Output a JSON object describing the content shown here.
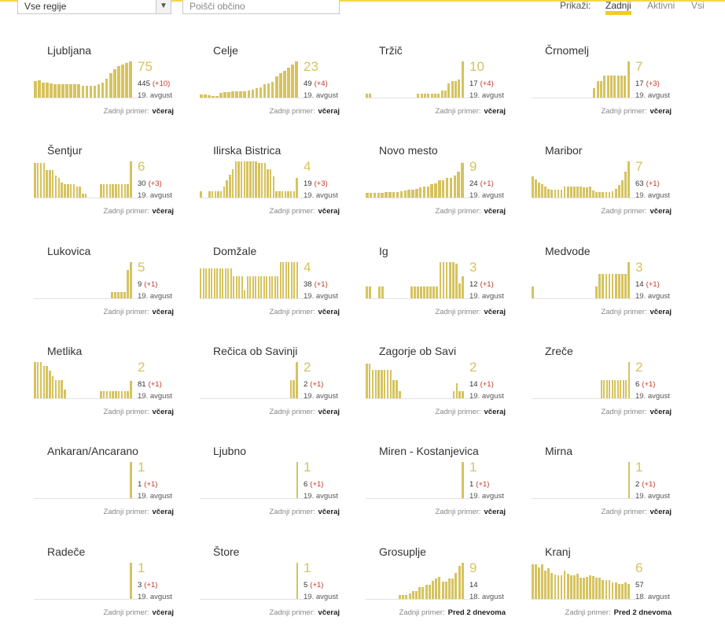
{
  "toolbar": {
    "region_select": "Vse regije",
    "search_placeholder": "Poišči občino",
    "show_label": "Prikaži:",
    "tabs": {
      "last": "Zadnji",
      "active": "Aktivni",
      "all": "Vsi"
    }
  },
  "colors": {
    "bar": "#d6c35e",
    "delta": "#c0392b",
    "accent": "#f2cc22"
  },
  "cards": [
    {
      "name": "Ljubljana",
      "big": "75",
      "total": "445",
      "delta": "(+10)",
      "date": "19. avgust",
      "last_label": "Zadnji primer:",
      "last_value": "včeraj",
      "chart": [
        0.45,
        0.48,
        0.42,
        0.42,
        0.4,
        0.38,
        0.38,
        0.36,
        0.36,
        0.36,
        0.36,
        0.36,
        0.33,
        0.33,
        0.33,
        0.33,
        0.38,
        0.42,
        0.52,
        0.68,
        0.78,
        0.86,
        0.92,
        0.96,
        1.0
      ]
    },
    {
      "name": "Celje",
      "big": "23",
      "total": "49",
      "delta": "(+4)",
      "date": "19. avgust",
      "last_label": "Zadnji primer:",
      "last_value": "včeraj",
      "chart": [
        0.08,
        0.08,
        0.06,
        0.04,
        0.04,
        0.12,
        0.16,
        0.16,
        0.18,
        0.18,
        0.18,
        0.18,
        0.2,
        0.22,
        0.26,
        0.28,
        0.36,
        0.4,
        0.44,
        0.58,
        0.68,
        0.74,
        0.82,
        0.92,
        1.0
      ]
    },
    {
      "name": "Tržič",
      "big": "10",
      "total": "17",
      "delta": "(+4)",
      "date": "19. avgust",
      "last_label": "Zadnji primer:",
      "last_value": "včeraj",
      "chart": [
        0.1,
        0.1,
        0,
        0,
        0,
        0,
        0,
        0,
        0,
        0,
        0,
        0,
        0,
        0,
        0,
        0.1,
        0.1,
        0.1,
        0.1,
        0.1,
        0.1,
        0.1,
        0.2,
        0.2,
        0.4,
        0.45,
        0.45,
        0.5,
        1.0
      ]
    },
    {
      "name": "Črnomelj",
      "big": "7",
      "total": "17",
      "delta": "(+3)",
      "date": "19. avgust",
      "last_label": "Zadnji primer:",
      "last_value": "včeraj",
      "chart": [
        0,
        0,
        0,
        0,
        0,
        0,
        0,
        0,
        0,
        0,
        0,
        0,
        0,
        0,
        0,
        0,
        0,
        0,
        0.25,
        0.45,
        0.45,
        0.6,
        0.6,
        0.6,
        0.6,
        0.6,
        0.6,
        0.6,
        1.0
      ]
    },
    {
      "name": "Šentjur",
      "big": "6",
      "total": "30",
      "delta": "(+3)",
      "date": "19. avgust",
      "last_label": "Zadnji primer:",
      "last_value": "včeraj",
      "chart": [
        0.95,
        0.95,
        0.95,
        0.95,
        0.75,
        0.75,
        0.75,
        0.6,
        0.55,
        0.42,
        0.38,
        0.38,
        0.38,
        0.38,
        0.3,
        0.3,
        0.1,
        0.1,
        0,
        0,
        0,
        0,
        0.38,
        0.38,
        0.38,
        0.38,
        0.38,
        0.38,
        0.38,
        0.38,
        0.38,
        0.38,
        1.0
      ]
    },
    {
      "name": "Ilirska Bistrica",
      "big": "4",
      "total": "19",
      "delta": "(+3)",
      "date": "19. avgust",
      "last_label": "Zadnji primer:",
      "last_value": "včeraj",
      "chart": [
        0.18,
        0,
        0,
        0.18,
        0.18,
        0.18,
        0.18,
        0.18,
        0.3,
        0.48,
        0.64,
        0.78,
        1.0,
        1.0,
        1.0,
        1.0,
        1.0,
        1.0,
        1.0,
        1.0,
        0.95,
        0.95,
        0.95,
        0.78,
        0.78,
        0.58,
        0.18,
        0.18,
        0.18,
        0.18,
        0.18,
        0.18,
        0.18,
        0.55
      ]
    },
    {
      "name": "Novo mesto",
      "big": "9",
      "total": "24",
      "delta": "(+1)",
      "date": "19. avgust",
      "last_label": "Zadnji primer:",
      "last_value": "včeraj",
      "chart": [
        0.12,
        0.12,
        0.12,
        0.12,
        0.12,
        0.16,
        0.16,
        0.16,
        0.16,
        0.18,
        0.2,
        0.22,
        0.22,
        0.24,
        0.28,
        0.3,
        0.3,
        0.36,
        0.4,
        0.48,
        0.48,
        0.55,
        0.55,
        0.6,
        0.72,
        0.95
      ]
    },
    {
      "name": "Maribor",
      "big": "7",
      "total": "63",
      "delta": "(+1)",
      "date": "19. avgust",
      "last_label": "Zadnji primer:",
      "last_value": "včeraj",
      "chart": [
        0.58,
        0.5,
        0.42,
        0.36,
        0.3,
        0.24,
        0.22,
        0.22,
        0.22,
        0.22,
        0.3,
        0.3,
        0.3,
        0.3,
        0.3,
        0.3,
        0.28,
        0.28,
        0.3,
        0.2,
        0.16,
        0.16,
        0.16,
        0.16,
        0.16,
        0.18,
        0.24,
        0.34,
        0.48,
        0.72,
        1.0
      ]
    },
    {
      "name": "Lukovica",
      "big": "5",
      "total": "9",
      "delta": "(+1)",
      "date": "19. avgust",
      "last_label": "Zadnji primer:",
      "last_value": "včeraj",
      "chart": [
        0,
        0,
        0,
        0,
        0,
        0,
        0,
        0,
        0,
        0,
        0,
        0,
        0,
        0,
        0,
        0,
        0,
        0,
        0,
        0,
        0,
        0,
        0,
        0,
        0,
        0.18,
        0.18,
        0.18,
        0.18,
        0.18,
        0.78,
        1.0
      ]
    },
    {
      "name": "Domžale",
      "big": "4",
      "total": "38",
      "delta": "(+1)",
      "date": "19. avgust",
      "last_label": "Zadnji primer:",
      "last_value": "včeraj",
      "chart": [
        0.82,
        0.82,
        0.82,
        0.82,
        0.82,
        0.82,
        0.82,
        0.82,
        0.82,
        0.82,
        0.82,
        0.82,
        0.6,
        0.6,
        0.6,
        0.6,
        0.22,
        0.6,
        0.6,
        0.6,
        0.6,
        0.6,
        0.6,
        0.6,
        0.6,
        0.6,
        0.6,
        0.6,
        0.6,
        1.0,
        1.0,
        1.0,
        1.0,
        1.0,
        1.0,
        1.0
      ]
    },
    {
      "name": "Ig",
      "big": "3",
      "total": "12",
      "delta": "(+1)",
      "date": "19. avgust",
      "last_label": "Zadnji primer:",
      "last_value": "včeraj",
      "chart": [
        0.32,
        0.32,
        0,
        0,
        0.32,
        0.32,
        0,
        0,
        0,
        0,
        0,
        0,
        0,
        0,
        0.32,
        0.32,
        0.32,
        0.32,
        0.32,
        0.32,
        0.32,
        0.32,
        0.32,
        1.0,
        1.0,
        1.0,
        1.0,
        1.0,
        0.95,
        0.42,
        0.6
      ]
    },
    {
      "name": "Medvode",
      "big": "3",
      "total": "14",
      "delta": "(+1)",
      "date": "19. avgust",
      "last_label": "Zadnji primer:",
      "last_value": "včeraj",
      "chart": [
        0.32,
        0,
        0,
        0,
        0,
        0,
        0,
        0,
        0,
        0,
        0,
        0,
        0,
        0,
        0,
        0,
        0,
        0,
        0,
        0,
        0.32,
        0.68,
        0.68,
        0.68,
        0.68,
        0.68,
        0.68,
        0.68,
        0.68,
        0.68,
        1.0
      ]
    },
    {
      "name": "Metlika",
      "big": "2",
      "total": "81",
      "delta": "(+1)",
      "date": "19. avgust",
      "last_label": "Zadnji primer:",
      "last_value": "včeraj",
      "chart": [
        1.0,
        1.0,
        1.0,
        0.9,
        0.9,
        0.75,
        0.6,
        0.5,
        0.5,
        0.5,
        0.24,
        0,
        0,
        0,
        0,
        0,
        0,
        0,
        0,
        0,
        0,
        0,
        0.2,
        0.2,
        0.2,
        0.2,
        0.2,
        0.2,
        0.2,
        0.2,
        0.2,
        0.2,
        0.48
      ]
    },
    {
      "name": "Rečica ob Savinji",
      "big": "2",
      "total": "2",
      "delta": "(+1)",
      "date": "19. avgust",
      "last_label": "Zadnji primer:",
      "last_value": "včeraj",
      "chart": [
        0,
        0,
        0,
        0,
        0,
        0,
        0,
        0,
        0,
        0,
        0,
        0,
        0,
        0,
        0,
        0,
        0,
        0,
        0,
        0,
        0,
        0,
        0,
        0,
        0,
        0,
        0,
        0,
        0,
        0,
        0.5,
        0.5,
        1.0
      ]
    },
    {
      "name": "Zagorje ob Savi",
      "big": "2",
      "total": "14",
      "delta": "(+1)",
      "date": "19. avgust",
      "last_label": "Zadnji primer:",
      "last_value": "včeraj",
      "chart": [
        0.95,
        0.95,
        0.78,
        0.78,
        0.78,
        0.78,
        0.78,
        0.78,
        0.78,
        0.5,
        0.5,
        0.2,
        0,
        0,
        0,
        0,
        0,
        0,
        0,
        0,
        0,
        0,
        0,
        0,
        0,
        0,
        0,
        0,
        0,
        0.2,
        0.42,
        0.2,
        0.2
      ]
    },
    {
      "name": "Zreče",
      "big": "2",
      "total": "6",
      "delta": "(+1)",
      "date": "19. avgust",
      "last_label": "Zadnji primer:",
      "last_value": "včeraj",
      "chart": [
        0,
        0,
        0,
        0,
        0,
        0,
        0,
        0,
        0,
        0,
        0,
        0,
        0,
        0,
        0,
        0,
        0,
        0,
        0,
        0,
        0,
        0,
        0,
        0,
        0,
        0.5,
        0.5,
        0.5,
        0.5,
        0.5,
        0.5,
        0.5,
        0.5,
        0.5,
        0.5,
        1.0
      ]
    },
    {
      "name": "Ankaran/Ancarano",
      "big": "1",
      "total": "1",
      "delta": "(+1)",
      "date": "19. avgust",
      "last_label": "Zadnji primer:",
      "last_value": "včeraj",
      "chart": [
        0,
        0,
        0,
        0,
        0,
        0,
        0,
        0,
        0,
        0,
        0,
        0,
        0,
        0,
        0,
        0,
        0,
        0,
        0,
        0,
        0,
        0,
        0,
        0,
        0,
        0,
        0,
        0,
        0,
        0,
        0,
        0,
        1.0
      ]
    },
    {
      "name": "Ljubno",
      "big": "1",
      "total": "6",
      "delta": "(+1)",
      "date": "19. avgust",
      "last_label": "Zadnji primer:",
      "last_value": "včeraj",
      "chart": [
        0,
        0,
        0,
        0,
        0,
        0,
        0,
        0,
        0,
        0,
        0,
        0,
        0,
        0,
        0,
        0,
        0,
        0,
        0,
        0,
        0,
        0,
        0,
        0,
        0,
        0,
        0,
        0,
        0,
        0,
        0,
        0,
        0,
        0,
        0,
        1.0
      ]
    },
    {
      "name": "Miren - Kostanjevica",
      "big": "1",
      "total": "1",
      "delta": "(+1)",
      "date": "19. avgust",
      "last_label": "Zadnji primer:",
      "last_value": "včeraj",
      "chart": [
        0,
        0,
        0,
        0,
        0,
        0,
        0,
        0,
        0,
        0,
        0,
        0,
        0,
        0,
        0,
        0,
        0,
        0,
        0,
        0,
        0,
        0,
        0,
        0,
        0,
        0,
        0,
        0,
        0,
        0,
        0,
        0,
        1.0
      ]
    },
    {
      "name": "Mirna",
      "big": "1",
      "total": "2",
      "delta": "(+1)",
      "date": "19. avgust",
      "last_label": "Zadnji primer:",
      "last_value": "včeraj",
      "chart": [
        0,
        0,
        0,
        0,
        0,
        0,
        0,
        0,
        0,
        0,
        0,
        0,
        0,
        0,
        0,
        0,
        0,
        0,
        0,
        0,
        0,
        0,
        0,
        0,
        0,
        0,
        0,
        0,
        0,
        0,
        0,
        0,
        0,
        0,
        0,
        1.0
      ]
    },
    {
      "name": "Radeče",
      "big": "1",
      "total": "3",
      "delta": "(+1)",
      "date": "19. avgust",
      "last_label": "Zadnji primer:",
      "last_value": "včeraj",
      "chart": [
        0,
        0,
        0,
        0,
        0,
        0,
        0,
        0,
        0,
        0,
        0,
        0,
        0,
        0,
        0,
        0,
        0,
        0,
        0,
        0,
        0,
        0,
        0,
        0,
        0,
        0,
        0,
        0,
        0,
        0,
        0,
        0,
        1.0
      ]
    },
    {
      "name": "Štore",
      "big": "1",
      "total": "5",
      "delta": "(+1)",
      "date": "19. avgust",
      "last_label": "Zadnji primer:",
      "last_value": "včeraj",
      "chart": [
        0,
        0,
        0,
        0,
        0,
        0,
        0,
        0,
        0,
        0,
        0,
        0,
        0,
        0,
        0,
        0,
        0,
        0,
        0,
        0,
        0,
        0,
        0,
        0,
        0,
        0,
        0,
        0,
        0,
        0,
        0,
        0,
        0,
        0,
        0,
        1.0
      ]
    },
    {
      "name": "Grosuplje",
      "big": "9",
      "total": "14",
      "delta": "",
      "date": "18. avgust",
      "last_label": "Zadnji primer:",
      "last_value": "Pred 2 dnevoma",
      "chart": [
        0,
        0,
        0,
        0,
        0,
        0,
        0,
        0,
        0,
        0,
        0.1,
        0.1,
        0.1,
        0.16,
        0.22,
        0.22,
        0.32,
        0.32,
        0.4,
        0.4,
        0.5,
        0.56,
        0.6,
        0.48,
        0.48,
        0.56,
        0.56,
        0.72,
        0.92,
        1.0
      ]
    },
    {
      "name": "Kranj",
      "big": "6",
      "total": "57",
      "delta": "",
      "date": "18. avgust",
      "last_label": "Zadnji primer:",
      "last_value": "Pred 2 dnevoma",
      "chart": [
        0.95,
        0.95,
        0.88,
        0.95,
        0.78,
        0.85,
        0.72,
        0.68,
        0.66,
        0.66,
        0.78,
        0.7,
        0.66,
        0.66,
        0.7,
        0.58,
        0.58,
        0.6,
        0.66,
        0.62,
        0.58,
        0.58,
        0.52,
        0.52,
        0.52,
        0.46,
        0.46,
        0.42,
        0.42,
        0.46,
        0.42
      ]
    }
  ]
}
